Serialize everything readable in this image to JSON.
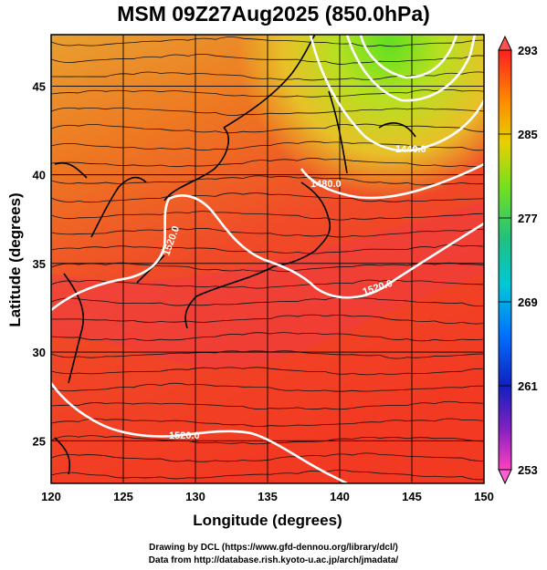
{
  "title": "MSM 09Z27Aug2025 (850.0hPa)",
  "x_axis": {
    "label": "Longitude (degrees)",
    "ticks": [
      "120",
      "125",
      "130",
      "135",
      "140",
      "145",
      "150"
    ]
  },
  "y_axis": {
    "label": "Latitude  (degrees)",
    "ticks": [
      "25",
      "30",
      "35",
      "40",
      "45"
    ]
  },
  "colorbar": {
    "ticks": [
      "293",
      "285",
      "277",
      "269",
      "261",
      "253"
    ]
  },
  "contours": [
    "1440.0",
    "1480.0",
    "1520.0",
    "1520.0",
    "1520.0"
  ],
  "credits": {
    "line1": "Drawing by DCL (https://www.gfd-dennou.org/library/dcl/)",
    "line2": "Data from http://database.rish.kyoto-u.ac.jp/arch/jmadata/"
  }
}
